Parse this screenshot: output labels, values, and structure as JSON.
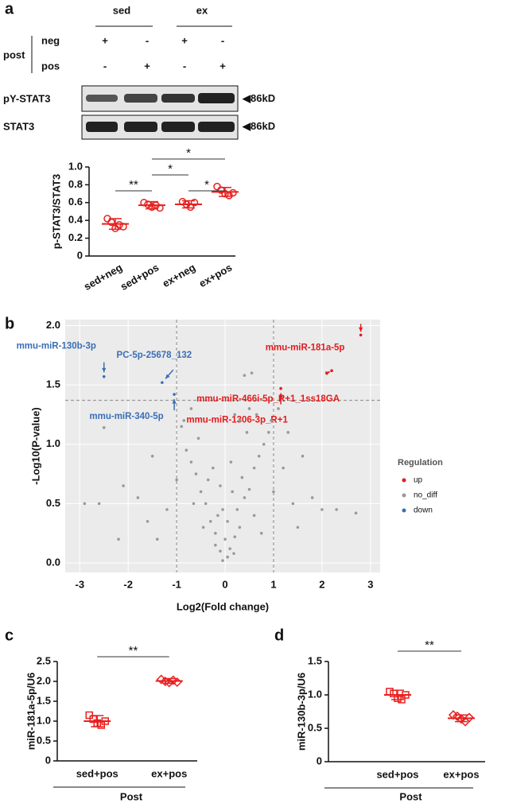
{
  "blot": {
    "panel": "a",
    "groups": [
      "sed",
      "ex"
    ],
    "factor": "post",
    "rows": [
      {
        "name": "neg",
        "signs": [
          "+",
          "-",
          "+",
          "-"
        ]
      },
      {
        "name": "pos",
        "signs": [
          "-",
          "+",
          "-",
          "+"
        ]
      }
    ],
    "bands": [
      {
        "name": "pY-STAT3",
        "size": "86kD"
      },
      {
        "name": "STAT3",
        "size": "86kD"
      }
    ]
  },
  "chart_data": [
    {
      "type": "dot",
      "ylabel": "p-STAT3/STAT3",
      "categories": [
        "sed+neg",
        "sed+pos",
        "ex+neg",
        "ex+pos"
      ],
      "points": [
        [
          0.42,
          0.38,
          0.31,
          0.35,
          0.33
        ],
        [
          0.6,
          0.58,
          0.55,
          0.57,
          0.54
        ],
        [
          0.61,
          0.58,
          0.55,
          0.6
        ],
        [
          0.78,
          0.74,
          0.7,
          0.68,
          0.71
        ]
      ],
      "means": [
        0.36,
        0.57,
        0.58,
        0.72
      ],
      "sd": [
        0.06,
        0.04,
        0.04,
        0.05
      ],
      "color": "#e8201f",
      "marker": [
        "circle",
        "circle",
        "circle",
        "circle"
      ],
      "ylim": [
        0,
        1
      ],
      "yticks": [
        0,
        0.2,
        0.4,
        0.6,
        0.8,
        {
          "value": 1,
          "label": "1.0"
        }
      ],
      "significance": [
        {
          "between": [
            "sed+neg",
            "sed+pos"
          ],
          "label": "**"
        },
        {
          "between": [
            "ex+neg",
            "ex+pos"
          ],
          "label": "*"
        },
        {
          "between": [
            "sed+pos",
            "ex+neg"
          ],
          "label": "*"
        },
        {
          "between": [
            "sed+pos",
            "ex+pos"
          ],
          "label": "*"
        }
      ]
    },
    {
      "type": "volcano",
      "panel": "b",
      "xlabel": "Log2(Fold change)",
      "ylabel": "-Log10(P-value)",
      "xlim": [
        -3.3,
        3.2
      ],
      "ylim": [
        -0.08,
        2.05
      ],
      "xticks": [
        -3,
        -2,
        -1,
        0,
        1,
        2,
        3
      ],
      "yticks": [
        {
          "value": 0,
          "label": "0.0"
        },
        0.5,
        {
          "value": 1,
          "label": "1.0"
        },
        1.5,
        {
          "value": 2,
          "label": "2.0"
        }
      ],
      "thresholds": {
        "x": [
          -1,
          1
        ],
        "y": 1.37
      },
      "legend_title": "Regulation",
      "series": [
        {
          "name": "up",
          "color": "#e41a1c",
          "x": [
            2.8,
            2.2,
            1.15
          ],
          "values": [
            1.92,
            1.62,
            1.47
          ],
          "labels": [
            "mmu-miR-181a-5p",
            "mmu-miR-466i-5p_R+1_1ss18GA",
            "mmu-miR-1306-3p_R+1"
          ]
        },
        {
          "name": "no_diff",
          "color": "#999999",
          "x": [
            -0.05,
            0.05,
            -0.1,
            0.1,
            0.0,
            -0.2,
            0.2,
            -0.3,
            0.3,
            -0.15,
            0.25,
            -0.4,
            0.4,
            -0.5,
            0.5,
            -0.35,
            0.35,
            -0.6,
            0.6,
            -0.7,
            0.7,
            -0.25,
            0.15,
            -0.8,
            0.8,
            -0.55,
            0.45,
            -0.9,
            0.9,
            0.3,
            0.5,
            0.2,
            -0.7,
            0.55,
            0.4,
            -1.5,
            -1.8,
            -2.1,
            -2.6,
            -2.9,
            -2.5,
            -1.6,
            -1.2,
            -1.0,
            1.0,
            1.2,
            1.4,
            1.6,
            1.8,
            1.3,
            1.1,
            2.0,
            2.3,
            2.7,
            -0.05,
            0.05,
            -0.1,
            0.12,
            -0.45,
            0.6,
            -0.65,
            0.75,
            -0.2,
            0.18,
            -1.4,
            1.5,
            0.95,
            -0.85,
            0.65,
            -2.2
          ],
          "values": [
            0.02,
            0.05,
            0.1,
            0.12,
            0.2,
            0.25,
            0.22,
            0.35,
            0.3,
            0.4,
            0.45,
            0.5,
            0.55,
            0.6,
            0.62,
            0.7,
            0.72,
            0.75,
            0.8,
            0.85,
            0.9,
            0.8,
            0.6,
            0.95,
            1.0,
            1.05,
            1.1,
            1.15,
            1.1,
            1.2,
            1.3,
            1.25,
            1.3,
            1.6,
            1.58,
            0.9,
            0.55,
            0.65,
            0.5,
            0.5,
            1.14,
            0.35,
            0.45,
            0.7,
            0.6,
            0.8,
            0.5,
            0.9,
            0.55,
            1.1,
            1.3,
            0.45,
            0.45,
            0.42,
            0.45,
            0.35,
            0.65,
            0.85,
            0.3,
            0.4,
            0.5,
            0.25,
            0.15,
            0.08,
            0.2,
            0.3,
            1.2,
            1.2,
            1.25,
            0.2
          ]
        },
        {
          "name": "down",
          "color": "#3a6fb5",
          "x": [
            -2.5,
            -1.3,
            -1.05
          ],
          "values": [
            1.57,
            1.52,
            1.42
          ],
          "labels": [
            "mmu-miR-130b-3p",
            "PC-5p-25678_132",
            "mmu-miR-340-5p"
          ]
        }
      ]
    },
    {
      "type": "dot",
      "panel": "c",
      "ylabel": "miR-181a-5p/U6",
      "xlabel": "Post",
      "categories": [
        "sed+pos",
        "ex+pos"
      ],
      "points": [
        [
          1.15,
          1.05,
          0.95,
          0.9,
          1.0
        ],
        [
          2.05,
          2.0,
          1.97,
          2.03,
          1.98
        ]
      ],
      "means": [
        1.0,
        2.01
      ],
      "sd": [
        0.14,
        0.06
      ],
      "color": "#e8201f",
      "marker": [
        "square",
        "diamond"
      ],
      "ylim": [
        0,
        2.5
      ],
      "yticks": [
        0,
        0.5,
        {
          "value": 1,
          "label": "1.0"
        },
        1.5,
        {
          "value": 2,
          "label": "2.0"
        },
        2.5
      ],
      "significance": [
        {
          "between": [
            "sed+pos",
            "ex+pos"
          ],
          "label": "**"
        }
      ]
    },
    {
      "type": "dot",
      "panel": "d",
      "ylabel": "miR-130b-3p/U6",
      "xlabel": "Post",
      "categories": [
        "sed+pos",
        "ex+pos"
      ],
      "points": [
        [
          1.05,
          1.02,
          0.95,
          0.93,
          1.0
        ],
        [
          0.7,
          0.68,
          0.64,
          0.6,
          0.66
        ]
      ],
      "means": [
        1.0,
        0.65
      ],
      "sd": [
        0.07,
        0.05
      ],
      "color": "#e8201f",
      "marker": [
        "square",
        "diamond"
      ],
      "ylim": [
        0,
        1.5
      ],
      "yticks": [
        0,
        0.5,
        {
          "value": 1,
          "label": "1.0"
        },
        1.5
      ],
      "significance": [
        {
          "between": [
            "sed+pos",
            "ex+pos"
          ],
          "label": "**"
        }
      ]
    }
  ]
}
